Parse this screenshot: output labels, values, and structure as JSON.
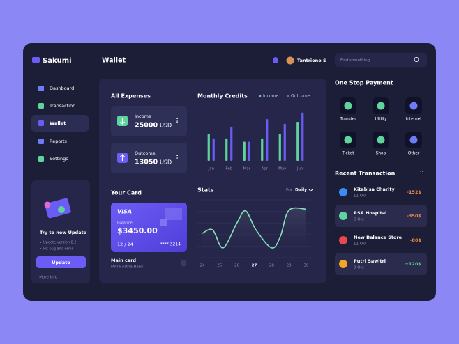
{
  "brand": "Sakumi",
  "nav": [
    "Dashboard",
    "Transaction",
    "Wallet",
    "Reports",
    "Settings"
  ],
  "update_card": {
    "title": "Try to new Update",
    "items": [
      "Updete version 8.2",
      "Fix bug and error"
    ],
    "button": "Update",
    "link": "More info"
  },
  "header": {
    "title": "Wallet",
    "user": "Tantriono S",
    "search_placeholder": "Find something..."
  },
  "expenses": {
    "title": "All Expenses",
    "items": [
      {
        "label": "Income",
        "amount": "25000",
        "unit": "USD"
      },
      {
        "label": "Outcome",
        "amount": "13050",
        "unit": "USD"
      }
    ]
  },
  "card_section": {
    "title": "Your Card",
    "brand": "VISA",
    "balance_label": "Balance",
    "balance": "$3450.00",
    "expiry": "12 / 24",
    "number": "**** 3214",
    "name": "Main card",
    "bank": "Mitra Artha Bank"
  },
  "chart_data": [
    {
      "type": "bar",
      "title": "Monthly Credits",
      "categories": [
        "Jan",
        "Feb",
        "Mar",
        "Apr",
        "May",
        "Jun"
      ],
      "series": [
        {
          "name": "Income",
          "color": "#5ed39c",
          "values": [
            41,
            34,
            29,
            34,
            41,
            59
          ]
        },
        {
          "name": "Outcome",
          "color": "#6b5cf5",
          "values": [
            34,
            51,
            29,
            63,
            56,
            73
          ]
        }
      ],
      "ylim": [
        0,
        80
      ]
    },
    {
      "type": "line",
      "title": "Stats",
      "period_label": "For",
      "period": "Daily",
      "color": "#86e3b6",
      "x": [
        24,
        24.6,
        25.2,
        26,
        26.5,
        27.1,
        28,
        28.5,
        29,
        30
      ],
      "values": [
        42,
        48,
        17,
        60,
        81,
        48,
        17,
        36,
        82,
        84
      ],
      "xlim": [
        24,
        30
      ],
      "xticks": [
        24,
        25,
        26,
        27,
        28,
        29,
        30
      ],
      "highlight_x": 27,
      "ylim": [
        0,
        100
      ],
      "yticks": [
        0,
        20,
        40,
        60,
        80,
        100
      ],
      "grid": true
    }
  ],
  "payment": {
    "title": "One Stop Payment",
    "items": [
      "Transfer",
      "Utility",
      "Internet",
      "Ticket",
      "Shop",
      "Other"
    ]
  },
  "transactions": {
    "title": "Recent Transaction",
    "rows": [
      {
        "name": "Kitabisa Charity",
        "date": "11 Okt",
        "amount": "-152$"
      },
      {
        "name": "RSA Hospital",
        "date": "6 Okt",
        "amount": "-350$"
      },
      {
        "name": "New Balance Store",
        "date": "11 Okt",
        "amount": "-80$"
      },
      {
        "name": "Putri Sawitri",
        "date": "8 Okt",
        "amount": "+120$"
      }
    ]
  }
}
